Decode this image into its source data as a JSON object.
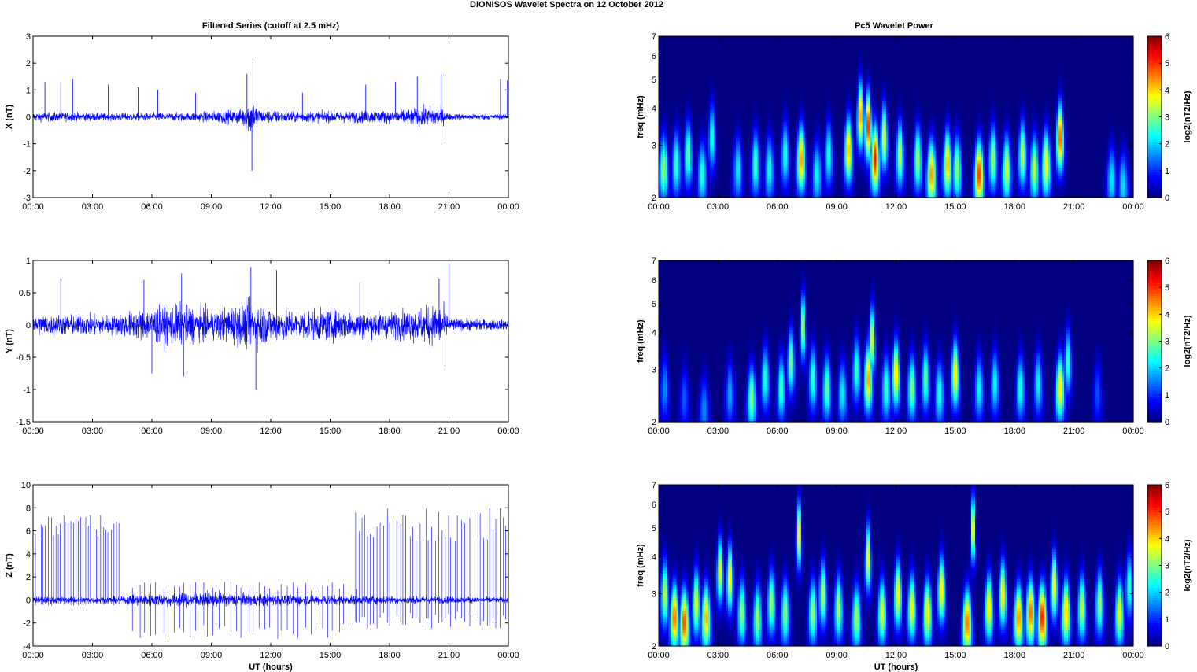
{
  "figure": {
    "title": "DIONISOS Wavelet Spectra on 12 October   2012",
    "left_column_title": "Filtered Series (cutoff at 2.5 mHz)",
    "right_column_title": "Pc5 Wavelet Power"
  },
  "time_ticks": [
    "00:00",
    "03:00",
    "06:00",
    "09:00",
    "12:00",
    "15:00",
    "18:00",
    "21:00",
    "00:00"
  ],
  "chart_data": [
    {
      "type": "line",
      "panel": "X",
      "ylabel": "X (nT)",
      "xlabel": "",
      "xlim": [
        0,
        24
      ],
      "ylim": [
        -3,
        3
      ],
      "yticks": [
        "-3",
        "-2",
        "-1",
        "0",
        "1",
        "2",
        "3"
      ],
      "ytick_values": [
        -3,
        -2,
        -1,
        0,
        1,
        2,
        3
      ],
      "color": "#0000ff",
      "noise": [
        [
          0,
          0.22
        ],
        [
          4,
          0.18
        ],
        [
          8,
          0.2
        ],
        [
          10.5,
          0.35
        ],
        [
          11,
          0.9
        ],
        [
          11.5,
          0.3
        ],
        [
          14,
          0.25
        ],
        [
          18,
          0.3
        ],
        [
          20.5,
          0.5
        ],
        [
          21,
          0.15
        ],
        [
          24,
          0.12
        ]
      ],
      "spikes": [
        {
          "t": 0.6,
          "v": 1.3
        },
        {
          "t": 1.4,
          "v": 1.3
        },
        {
          "t": 2.0,
          "v": 1.4
        },
        {
          "t": 3.8,
          "v": 1.2
        },
        {
          "t": 5.3,
          "v": 1.1
        },
        {
          "t": 6.3,
          "v": 1.0
        },
        {
          "t": 8.2,
          "v": 0.9
        },
        {
          "t": 10.8,
          "v": 1.6
        },
        {
          "t": 11.1,
          "v": 2.05
        },
        {
          "t": 11.05,
          "v": -2.0
        },
        {
          "t": 13.6,
          "v": 0.9
        },
        {
          "t": 16.8,
          "v": 1.2
        },
        {
          "t": 18.3,
          "v": 1.3
        },
        {
          "t": 19.4,
          "v": 1.5
        },
        {
          "t": 20.6,
          "v": 1.6
        },
        {
          "t": 20.8,
          "v": -1.0
        },
        {
          "t": 23.6,
          "v": 1.4
        },
        {
          "t": 23.95,
          "v": 1.35
        }
      ]
    },
    {
      "type": "line",
      "panel": "Y",
      "ylabel": "Y (nT)",
      "xlabel": "",
      "xlim": [
        0,
        24
      ],
      "ylim": [
        -1.5,
        1
      ],
      "yticks": [
        "-1.5",
        "-1",
        "-0.5",
        "0",
        "0.5",
        "1"
      ],
      "ytick_values": [
        -1.5,
        -1,
        -0.5,
        0,
        0.5,
        1
      ],
      "color": "#0000ff",
      "noise": [
        [
          0,
          0.2
        ],
        [
          4,
          0.2
        ],
        [
          5.5,
          0.3
        ],
        [
          7.5,
          0.4
        ],
        [
          9,
          0.28
        ],
        [
          11,
          0.45
        ],
        [
          12.5,
          0.3
        ],
        [
          15,
          0.3
        ],
        [
          18,
          0.25
        ],
        [
          20.7,
          0.4
        ],
        [
          21,
          0.12
        ],
        [
          24,
          0.1
        ]
      ],
      "spikes": [
        {
          "t": 1.4,
          "v": 0.72
        },
        {
          "t": 5.6,
          "v": 0.7
        },
        {
          "t": 7.5,
          "v": 0.8
        },
        {
          "t": 7.6,
          "v": -0.8
        },
        {
          "t": 11.0,
          "v": 0.9
        },
        {
          "t": 11.25,
          "v": -1.0
        },
        {
          "t": 12.3,
          "v": 0.85
        },
        {
          "t": 16.5,
          "v": 0.65
        },
        {
          "t": 20.5,
          "v": 0.72
        },
        {
          "t": 21.0,
          "v": 0.95
        },
        {
          "t": 20.8,
          "v": -0.7
        },
        {
          "t": 6.0,
          "v": -0.75
        }
      ]
    },
    {
      "type": "line",
      "panel": "Z",
      "ylabel": "Z (nT)",
      "xlabel": "UT (hours)",
      "xlim": [
        0,
        24
      ],
      "ylim": [
        -4,
        10
      ],
      "yticks": [
        "-4",
        "-2",
        "0",
        "2",
        "4",
        "6",
        "8",
        "10"
      ],
      "ytick_values": [
        -4,
        -2,
        0,
        2,
        4,
        6,
        8,
        10
      ],
      "color": "#0000ff",
      "noise": [
        [
          0,
          0.35
        ],
        [
          4.5,
          0.35
        ],
        [
          5,
          0.6
        ],
        [
          8,
          0.8
        ],
        [
          12,
          0.6
        ],
        [
          16,
          0.5
        ],
        [
          20,
          0.4
        ],
        [
          24,
          0.3
        ]
      ],
      "spike_regions": [
        {
          "from": 0.1,
          "to": 4.4,
          "count": 34,
          "min": 5.4,
          "max": 7.4,
          "neg_min": -0.3,
          "neg_max": -0.5
        },
        {
          "from": 5.0,
          "to": 16.5,
          "count": 40,
          "min": 0.8,
          "max": 1.6,
          "neg_min": -2.0,
          "neg_max": -3.4
        },
        {
          "from": 16.2,
          "to": 24,
          "count": 48,
          "min": 5.0,
          "max": 8.0,
          "neg_min": -1.0,
          "neg_max": -2.5
        }
      ]
    },
    {
      "type": "heatmap",
      "panel": "X",
      "ylabel": "freq (mHz)",
      "xlabel": "",
      "yscale": "log",
      "xlim": [
        0,
        24
      ],
      "ylim": [
        2,
        7
      ],
      "yticks": [
        "2",
        "3",
        "4",
        "5",
        "6",
        "7"
      ],
      "ytick_values": [
        2,
        3,
        4,
        5,
        6,
        7
      ],
      "colorbar_label": "log2(nT2/Hz)",
      "colorbar_ticks": [
        "0",
        "1",
        "2",
        "3",
        "4",
        "5",
        "6"
      ],
      "clim": [
        0,
        6
      ],
      "blobs": [
        {
          "t": 0.25,
          "f": 2.5,
          "p": 3.5
        },
        {
          "t": 0.9,
          "f": 2.6,
          "p": 3.0
        },
        {
          "t": 1.5,
          "f": 2.8,
          "p": 3.2
        },
        {
          "t": 2.2,
          "f": 2.4,
          "p": 2.8
        },
        {
          "t": 2.7,
          "f": 3.2,
          "p": 2.8
        },
        {
          "t": 4.0,
          "f": 2.5,
          "p": 2.5
        },
        {
          "t": 4.9,
          "f": 2.6,
          "p": 3.0
        },
        {
          "t": 5.6,
          "f": 2.5,
          "p": 2.7
        },
        {
          "t": 6.4,
          "f": 2.8,
          "p": 2.8
        },
        {
          "t": 7.2,
          "f": 2.7,
          "p": 5.0
        },
        {
          "t": 8.0,
          "f": 2.4,
          "p": 2.6
        },
        {
          "t": 8.6,
          "f": 2.8,
          "p": 2.8
        },
        {
          "t": 9.6,
          "f": 2.9,
          "p": 4.8
        },
        {
          "t": 10.2,
          "f": 3.8,
          "p": 5.2
        },
        {
          "t": 10.6,
          "f": 3.5,
          "p": 6.0
        },
        {
          "t": 10.95,
          "f": 2.7,
          "p": 5.8
        },
        {
          "t": 11.4,
          "f": 3.2,
          "p": 4.2
        },
        {
          "t": 12.2,
          "f": 2.8,
          "p": 3.8
        },
        {
          "t": 13.1,
          "f": 2.7,
          "p": 3.6
        },
        {
          "t": 13.8,
          "f": 2.4,
          "p": 5.0
        },
        {
          "t": 14.6,
          "f": 2.6,
          "p": 4.8
        },
        {
          "t": 15.1,
          "f": 2.5,
          "p": 3.5
        },
        {
          "t": 16.2,
          "f": 2.4,
          "p": 5.6
        },
        {
          "t": 16.9,
          "f": 2.7,
          "p": 3.6
        },
        {
          "t": 17.6,
          "f": 2.5,
          "p": 4.0
        },
        {
          "t": 18.4,
          "f": 2.8,
          "p": 3.8
        },
        {
          "t": 19.0,
          "f": 2.5,
          "p": 3.8
        },
        {
          "t": 19.6,
          "f": 2.6,
          "p": 4.5
        },
        {
          "t": 20.3,
          "f": 3.2,
          "p": 5.5
        },
        {
          "t": 22.9,
          "f": 2.3,
          "p": 2.4
        },
        {
          "t": 23.5,
          "f": 2.2,
          "p": 2.4
        }
      ]
    },
    {
      "type": "heatmap",
      "panel": "Y",
      "ylabel": "freq (mHz)",
      "xlabel": "",
      "yscale": "log",
      "xlim": [
        0,
        24
      ],
      "ylim": [
        2,
        7
      ],
      "yticks": [
        "2",
        "3",
        "4",
        "5",
        "6",
        "7"
      ],
      "ytick_values": [
        2,
        3,
        4,
        5,
        6,
        7
      ],
      "colorbar_label": "log2(nT2/Hz)",
      "colorbar_ticks": [
        "0",
        "1",
        "2",
        "3",
        "4",
        "5",
        "6"
      ],
      "clim": [
        0,
        6
      ],
      "blobs": [
        {
          "t": 0.3,
          "f": 2.6,
          "p": 1.8
        },
        {
          "t": 1.3,
          "f": 2.4,
          "p": 1.5
        },
        {
          "t": 2.3,
          "f": 2.2,
          "p": 1.8
        },
        {
          "t": 3.6,
          "f": 2.5,
          "p": 2.0
        },
        {
          "t": 4.7,
          "f": 2.4,
          "p": 3.4
        },
        {
          "t": 5.4,
          "f": 2.8,
          "p": 2.8
        },
        {
          "t": 6.2,
          "f": 2.6,
          "p": 3.0
        },
        {
          "t": 6.7,
          "f": 3.2,
          "p": 3.5
        },
        {
          "t": 7.3,
          "f": 4.2,
          "p": 3.8
        },
        {
          "t": 7.8,
          "f": 2.8,
          "p": 3.0
        },
        {
          "t": 8.5,
          "f": 2.6,
          "p": 3.2
        },
        {
          "t": 9.3,
          "f": 2.5,
          "p": 2.5
        },
        {
          "t": 10.0,
          "f": 3.0,
          "p": 3.0
        },
        {
          "t": 10.6,
          "f": 2.8,
          "p": 5.0
        },
        {
          "t": 10.8,
          "f": 3.8,
          "p": 4.2
        },
        {
          "t": 11.5,
          "f": 2.6,
          "p": 3.0
        },
        {
          "t": 12.0,
          "f": 2.9,
          "p": 4.5
        },
        {
          "t": 12.8,
          "f": 2.6,
          "p": 3.4
        },
        {
          "t": 13.5,
          "f": 2.8,
          "p": 3.2
        },
        {
          "t": 14.2,
          "f": 2.5,
          "p": 2.8
        },
        {
          "t": 15.0,
          "f": 2.9,
          "p": 4.5
        },
        {
          "t": 16.2,
          "f": 2.6,
          "p": 2.6
        },
        {
          "t": 17.0,
          "f": 2.7,
          "p": 2.6
        },
        {
          "t": 18.3,
          "f": 2.6,
          "p": 2.8
        },
        {
          "t": 19.2,
          "f": 2.7,
          "p": 2.6
        },
        {
          "t": 20.3,
          "f": 2.6,
          "p": 4.5
        },
        {
          "t": 20.7,
          "f": 3.2,
          "p": 3.0
        },
        {
          "t": 22.2,
          "f": 2.5,
          "p": 1.4
        }
      ]
    },
    {
      "type": "heatmap",
      "panel": "Z",
      "ylabel": "freq (mHz)",
      "xlabel": "UT (hours)",
      "yscale": "log",
      "xlim": [
        0,
        24
      ],
      "ylim": [
        2,
        7
      ],
      "yticks": [
        "2",
        "3",
        "4",
        "5",
        "6",
        "7"
      ],
      "ytick_values": [
        2,
        3,
        4,
        5,
        6,
        7
      ],
      "colorbar_label": "log2(nT2/Hz)",
      "colorbar_ticks": [
        "0",
        "1",
        "2",
        "3",
        "4",
        "5",
        "6"
      ],
      "clim": [
        0,
        6
      ],
      "blobs": [
        {
          "t": 0.3,
          "f": 3.0,
          "p": 3.8
        },
        {
          "t": 0.8,
          "f": 2.5,
          "p": 5.2
        },
        {
          "t": 1.3,
          "f": 2.4,
          "p": 5.5
        },
        {
          "t": 1.9,
          "f": 2.8,
          "p": 4.0
        },
        {
          "t": 2.4,
          "f": 2.5,
          "p": 4.8
        },
        {
          "t": 3.1,
          "f": 3.6,
          "p": 4.2
        },
        {
          "t": 3.6,
          "f": 3.4,
          "p": 4.5
        },
        {
          "t": 4.2,
          "f": 2.6,
          "p": 3.5
        },
        {
          "t": 5.0,
          "f": 2.5,
          "p": 3.6
        },
        {
          "t": 5.7,
          "f": 2.8,
          "p": 3.6
        },
        {
          "t": 6.4,
          "f": 2.6,
          "p": 3.5
        },
        {
          "t": 7.1,
          "f": 4.8,
          "p": 4.8
        },
        {
          "t": 7.8,
          "f": 2.6,
          "p": 3.6
        },
        {
          "t": 8.3,
          "f": 3.0,
          "p": 3.8
        },
        {
          "t": 9.1,
          "f": 2.7,
          "p": 3.8
        },
        {
          "t": 10.0,
          "f": 2.5,
          "p": 3.6
        },
        {
          "t": 10.6,
          "f": 4.0,
          "p": 4.5
        },
        {
          "t": 11.3,
          "f": 2.6,
          "p": 4.0
        },
        {
          "t": 12.1,
          "f": 3.0,
          "p": 4.5
        },
        {
          "t": 12.8,
          "f": 2.7,
          "p": 4.2
        },
        {
          "t": 13.6,
          "f": 2.6,
          "p": 4.4
        },
        {
          "t": 14.3,
          "f": 3.1,
          "p": 4.5
        },
        {
          "t": 15.6,
          "f": 2.4,
          "p": 5.2
        },
        {
          "t": 15.9,
          "f": 5.0,
          "p": 4.6
        },
        {
          "t": 16.7,
          "f": 2.7,
          "p": 4.4
        },
        {
          "t": 17.4,
          "f": 3.0,
          "p": 4.4
        },
        {
          "t": 18.2,
          "f": 2.5,
          "p": 5.0
        },
        {
          "t": 18.8,
          "f": 2.6,
          "p": 5.3
        },
        {
          "t": 19.4,
          "f": 2.5,
          "p": 5.8
        },
        {
          "t": 20.0,
          "f": 3.2,
          "p": 4.5
        },
        {
          "t": 20.6,
          "f": 2.6,
          "p": 4.6
        },
        {
          "t": 21.4,
          "f": 2.7,
          "p": 3.8
        },
        {
          "t": 22.3,
          "f": 2.8,
          "p": 3.6
        },
        {
          "t": 23.3,
          "f": 2.6,
          "p": 4.2
        },
        {
          "t": 23.8,
          "f": 3.2,
          "p": 3.0
        }
      ]
    }
  ]
}
